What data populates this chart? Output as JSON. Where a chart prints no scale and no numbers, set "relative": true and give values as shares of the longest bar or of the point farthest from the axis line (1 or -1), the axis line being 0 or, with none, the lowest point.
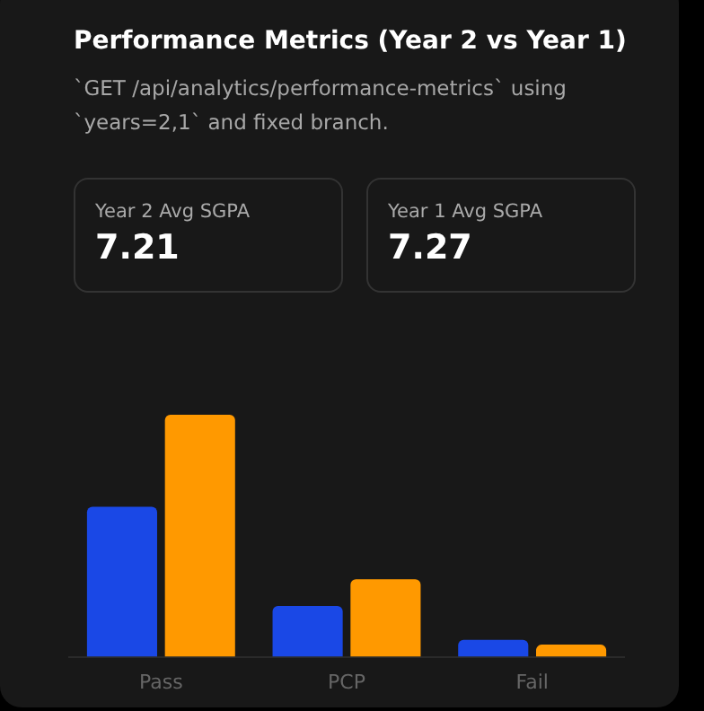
{
  "chart_data": {
    "type": "bar",
    "title": "Performance Metrics (Year 2 vs Year 1)",
    "subtitle": "`GET /api/analytics/performance-metrics` using `years=2,1` and fixed branch.",
    "annotations": [
      "Year 2 Avg SGPA",
      "7.21",
      "Year 1 Avg SGPA",
      "7.27"
    ],
    "categories": [
      "Pass",
      "PCP",
      "Fail"
    ],
    "series": [
      {
        "color": "#1a48e6",
        "values": [
          0.62,
          0.21,
          0.07
        ]
      },
      {
        "color": "#ff9900",
        "values": [
          1,
          0.32,
          0.05
        ]
      }
    ],
    "relative": true,
    "legend": false
  }
}
